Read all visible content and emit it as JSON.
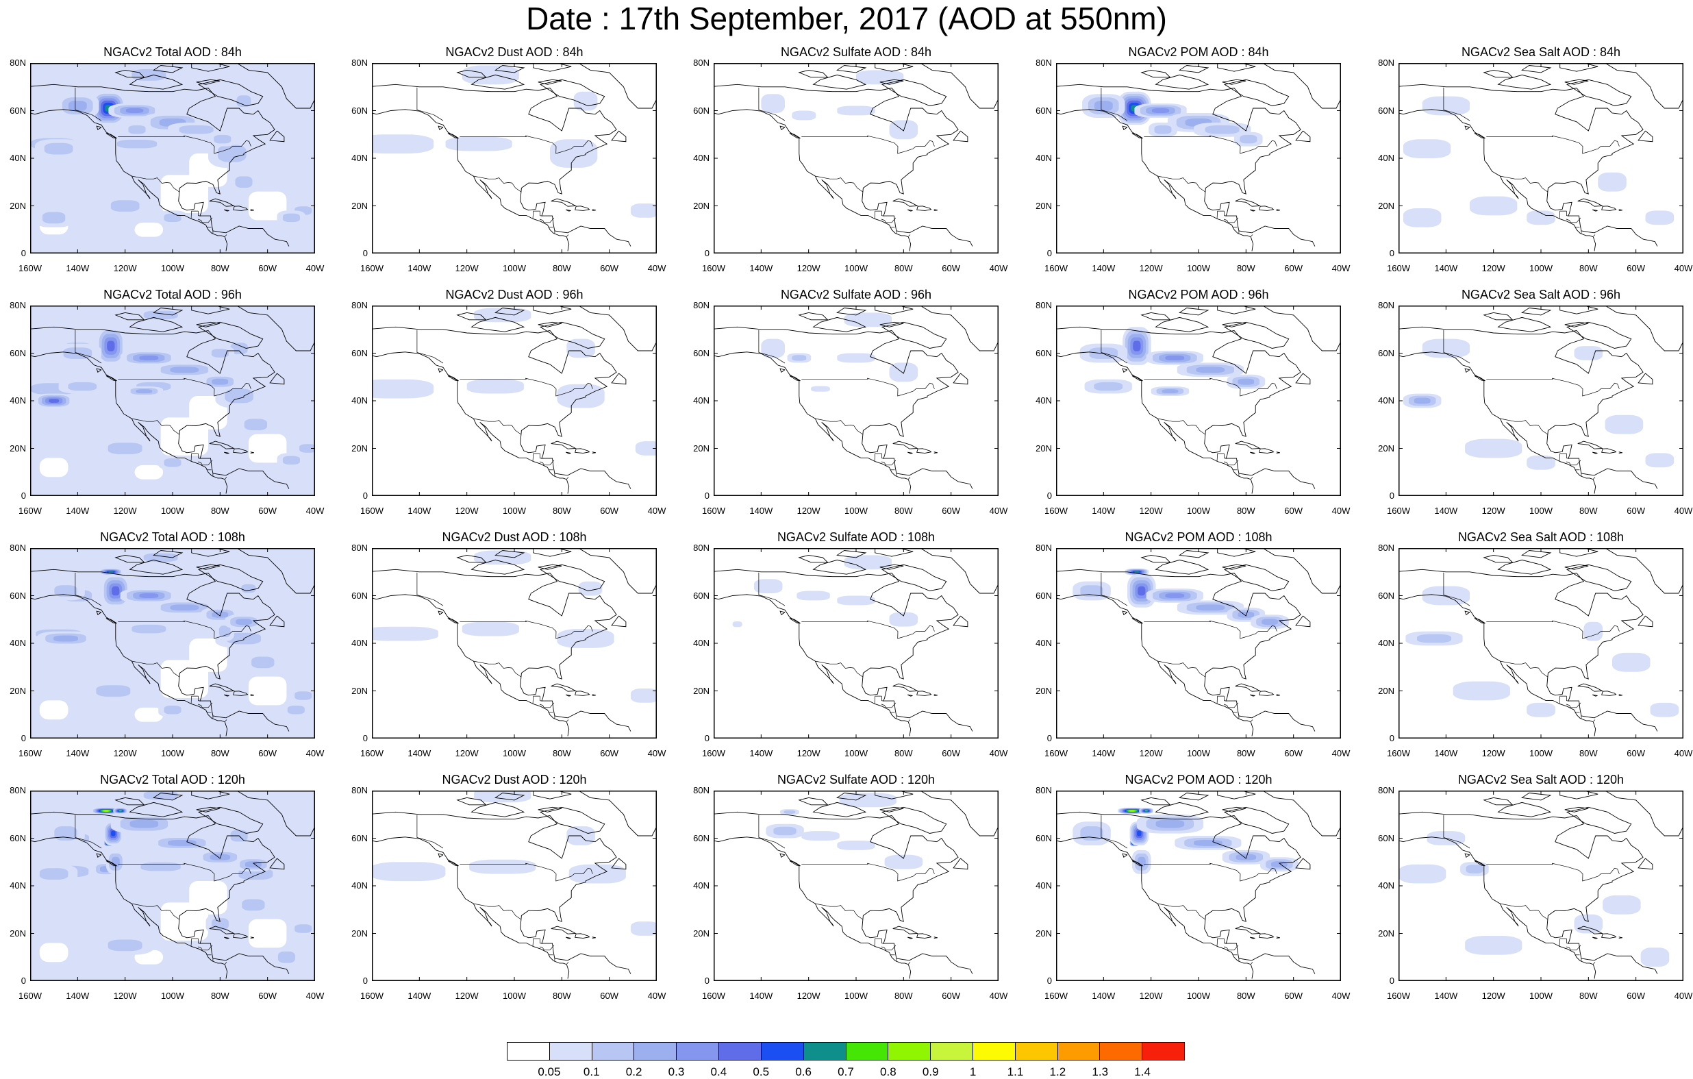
{
  "title": "Date : 17th September, 2017 (AOD at 550nm)",
  "panels": [
    {
      "title": "NGACv2 Total AOD : 84h",
      "kind": "total",
      "hour": 84
    },
    {
      "title": "NGACv2 Dust AOD : 84h",
      "kind": "dust",
      "hour": 84
    },
    {
      "title": "NGACv2 Sulfate AOD : 84h",
      "kind": "sulfate",
      "hour": 84
    },
    {
      "title": "NGACv2 POM AOD : 84h",
      "kind": "pom",
      "hour": 84
    },
    {
      "title": "NGACv2 Sea Salt AOD : 84h",
      "kind": "seasalt",
      "hour": 84
    },
    {
      "title": "NGACv2 Total AOD : 96h",
      "kind": "total",
      "hour": 96
    },
    {
      "title": "NGACv2 Dust AOD : 96h",
      "kind": "dust",
      "hour": 96
    },
    {
      "title": "NGACv2 Sulfate AOD : 96h",
      "kind": "sulfate",
      "hour": 96
    },
    {
      "title": "NGACv2 POM AOD : 96h",
      "kind": "pom",
      "hour": 96
    },
    {
      "title": "NGACv2 Sea Salt AOD : 96h",
      "kind": "seasalt",
      "hour": 96
    },
    {
      "title": "NGACv2 Total AOD : 108h",
      "kind": "total",
      "hour": 108
    },
    {
      "title": "NGACv2 Dust AOD : 108h",
      "kind": "dust",
      "hour": 108
    },
    {
      "title": "NGACv2 Sulfate AOD : 108h",
      "kind": "sulfate",
      "hour": 108
    },
    {
      "title": "NGACv2 POM AOD : 108h",
      "kind": "pom",
      "hour": 108
    },
    {
      "title": "NGACv2 Sea Salt AOD : 108h",
      "kind": "seasalt",
      "hour": 108
    },
    {
      "title": "NGACv2 Total AOD : 120h",
      "kind": "total",
      "hour": 120
    },
    {
      "title": "NGACv2 Dust AOD : 120h",
      "kind": "dust",
      "hour": 120
    },
    {
      "title": "NGACv2 Sulfate AOD : 120h",
      "kind": "sulfate",
      "hour": 120
    },
    {
      "title": "NGACv2 POM AOD : 120h",
      "kind": "pom",
      "hour": 120
    },
    {
      "title": "NGACv2 Sea Salt  AOD : 120h",
      "kind": "seasalt",
      "hour": 120
    }
  ],
  "lat_ticks": [
    "0",
    "20N",
    "40N",
    "60N",
    "80N"
  ],
  "lon_ticks": [
    "160W",
    "140W",
    "120W",
    "100W",
    "80W",
    "60W",
    "40W"
  ],
  "colorbar": {
    "labels": [
      "0.05",
      "0.1",
      "0.2",
      "0.3",
      "0.4",
      "0.5",
      "0.6",
      "0.7",
      "0.8",
      "0.9",
      "1",
      "1.1",
      "1.2",
      "1.3",
      "1.4"
    ],
    "colors": [
      "#ffffff",
      "#d7e0f8",
      "#b7c6f2",
      "#9cb0f0",
      "#8596ee",
      "#5f6ee8",
      "#1b4ff2",
      "#0e8f8c",
      "#45e605",
      "#8ff500",
      "#c8f53b",
      "#fdfb04",
      "#fdc700",
      "#fd9c00",
      "#fc6a00",
      "#f6200b"
    ]
  }
}
